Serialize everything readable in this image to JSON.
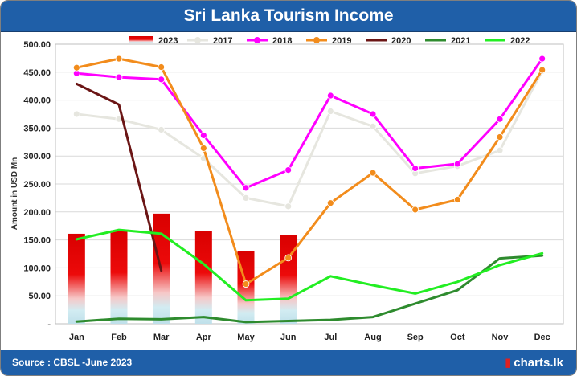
{
  "header": {
    "title": "Sri Lanka Tourism Income"
  },
  "footer": {
    "source": "Source : CBSL -June 2023",
    "brand": "charts.lk",
    "brand_icon": "chart-bars-icon"
  },
  "chart_data": {
    "type": "bar+line",
    "title": "Sri Lanka Tourism Income",
    "xlabel": "",
    "ylabel": "Amount in USD Mn",
    "categories": [
      "Jan",
      "Feb",
      "Mar",
      "Apr",
      "May",
      "Jun",
      "Jul",
      "Aug",
      "Sep",
      "Oct",
      "Nov",
      "Dec"
    ],
    "ylim": [
      0,
      500
    ],
    "yticks": [
      0,
      50,
      100,
      150,
      200,
      250,
      300,
      350,
      400,
      450,
      500
    ],
    "ytick_labels": [
      "-",
      "50.00",
      "100.00",
      "150.00",
      "200.00",
      "250.00",
      "300.00",
      "350.00",
      "400.00",
      "450.00",
      "500.00"
    ],
    "legend_position": "top",
    "bar_series": {
      "name": "2023",
      "values": [
        161,
        167,
        197,
        166,
        130,
        159,
        null,
        null,
        null,
        null,
        null,
        null
      ]
    },
    "series": [
      {
        "name": "2017",
        "color": "#e6e6df",
        "marker": true,
        "values": [
          375,
          366,
          347,
          296,
          225,
          210,
          380,
          353,
          269,
          282,
          310,
          452
        ]
      },
      {
        "name": "2018",
        "color": "#ff00ff",
        "marker": true,
        "values": [
          448,
          441,
          437,
          337,
          243,
          275,
          408,
          375,
          278,
          286,
          366,
          474
        ]
      },
      {
        "name": "2019",
        "color": "#f28c1c",
        "marker": true,
        "values": [
          458,
          474,
          459,
          314,
          71,
          118,
          216,
          270,
          204,
          222,
          334,
          454
        ]
      },
      {
        "name": "2020",
        "color": "#6b1515",
        "marker": false,
        "values": [
          429,
          392,
          95,
          null,
          null,
          null,
          null,
          null,
          null,
          null,
          null,
          null
        ]
      },
      {
        "name": "2021",
        "color": "#2e8b2e",
        "marker": false,
        "values": [
          4,
          9,
          8,
          12,
          3,
          5,
          7,
          12,
          36,
          60,
          117,
          122
        ]
      },
      {
        "name": "2022",
        "color": "#22ee22",
        "marker": false,
        "values": [
          151,
          168,
          161,
          107,
          42,
          45,
          85,
          69,
          54,
          75,
          105,
          126
        ]
      }
    ]
  },
  "colors": {
    "header_bg": "#1f5fa8",
    "bar_top": "#dd0000",
    "bar_bottom": "#c8e6f0"
  }
}
